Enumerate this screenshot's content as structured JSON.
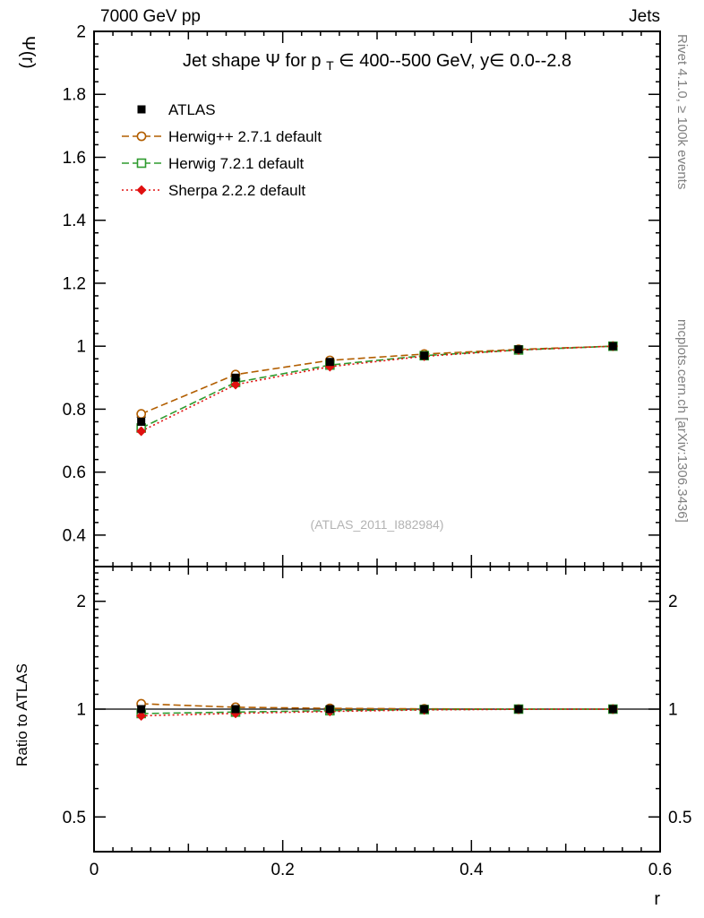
{
  "header": {
    "left": "7000 GeV pp",
    "right": "Jets"
  },
  "watermark": "(ATLAS_2011_I882984)",
  "side_notes": {
    "top": "Rivet 4.1.0, ≥ 100k events",
    "bottom": "mcplots.cern.ch [arXiv:1306.3436]"
  },
  "chart_data": {
    "type": "line",
    "title": "Jet shape Ψ for p_T ∈ 400--500 GeV, y∈ 0.0--2.8",
    "title_parts": {
      "pre": "Jet shape Ψ for p",
      "sub": "T",
      "post": " ∈ 400--500 GeV, y∈ 0.0--2.8"
    },
    "xlabel": "r",
    "ylabel": "Ψ(r)",
    "ratio_label": "Ratio to ATLAS",
    "legend_position": "top-left",
    "grid": false,
    "xlim": [
      0,
      0.6
    ],
    "ylim": [
      0.3,
      2.0
    ],
    "ratio_ylim": [
      0.4,
      2.5
    ],
    "ratio_scale": "log",
    "x_ticks": [
      0,
      0.2,
      0.4,
      0.6
    ],
    "y_ticks": [
      0.4,
      0.6,
      0.8,
      1,
      1.2,
      1.4,
      1.6,
      1.8,
      2
    ],
    "ratio_ticks": [
      0.5,
      1,
      2
    ],
    "x": [
      0.05,
      0.15,
      0.25,
      0.35,
      0.45,
      0.55
    ],
    "series": [
      {
        "name": "ATLAS",
        "kind": "data",
        "color": "#000000",
        "marker": "square-filled",
        "line": "none",
        "values": [
          0.76,
          0.9,
          0.95,
          0.97,
          0.99,
          1.0
        ],
        "errors": [
          0.015,
          0.01,
          0.006,
          0.005,
          0.004,
          0.003
        ],
        "ratio": [
          1,
          1,
          1,
          1,
          1,
          1
        ]
      },
      {
        "name": "Herwig++ 2.7.1 default",
        "kind": "mc",
        "color": "#b25e00",
        "marker": "circle-open",
        "line": "dashed",
        "values": [
          0.785,
          0.91,
          0.955,
          0.975,
          0.99,
          1.0
        ],
        "ratio": [
          1.035,
          1.012,
          1.005,
          1.002,
          1.0,
          1.0
        ]
      },
      {
        "name": "Herwig 7.2.1 default",
        "kind": "mc",
        "color": "#2e9b2e",
        "marker": "square-open",
        "line": "dashed",
        "values": [
          0.74,
          0.885,
          0.94,
          0.97,
          0.988,
          1.0
        ],
        "ratio": [
          0.972,
          0.981,
          0.99,
          0.997,
          1.0,
          1.0
        ]
      },
      {
        "name": "Sherpa 2.2.2 default",
        "kind": "mc",
        "color": "#e01010",
        "marker": "diamond-filled",
        "line": "dotted",
        "values": [
          0.73,
          0.878,
          0.935,
          0.968,
          0.988,
          1.0
        ],
        "ratio": [
          0.958,
          0.973,
          0.985,
          0.995,
          0.999,
          1.0
        ]
      }
    ]
  }
}
